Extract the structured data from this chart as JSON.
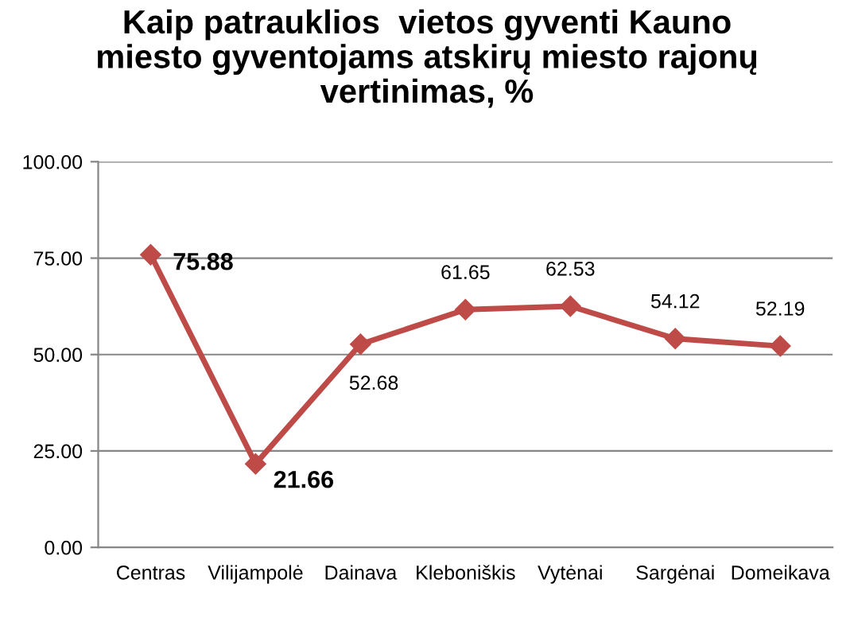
{
  "chart_data": {
    "type": "line",
    "title": "Kaip patrauklios  vietos gyventi Kauno\nmiesto gyventojams atskirų miesto rajonų\nvertinimas, %",
    "categories": [
      "Centras",
      "Vilijampolė",
      "Dainava",
      "Kleboniškis",
      "Vytėnai",
      "Sargėnai",
      "Domeikava"
    ],
    "series": [
      {
        "color": "#be4b48",
        "values": [
          75.88,
          21.66,
          52.68,
          61.65,
          62.53,
          54.12,
          52.19
        ],
        "value_labels": [
          "75.88",
          "21.66",
          "52.68",
          "61.65",
          "62.53",
          "54.12",
          "52.19"
        ]
      }
    ],
    "ylim": [
      0,
      100
    ],
    "yticks": [
      {
        "value": 0,
        "label": "0.00"
      },
      {
        "value": 25,
        "label": "25.00"
      },
      {
        "value": 50,
        "label": "50.00"
      },
      {
        "value": 75,
        "label": "75.00"
      },
      {
        "value": 100,
        "label": "100.00"
      }
    ],
    "grid": "y",
    "marker": "diamond",
    "line_style": "solid"
  }
}
